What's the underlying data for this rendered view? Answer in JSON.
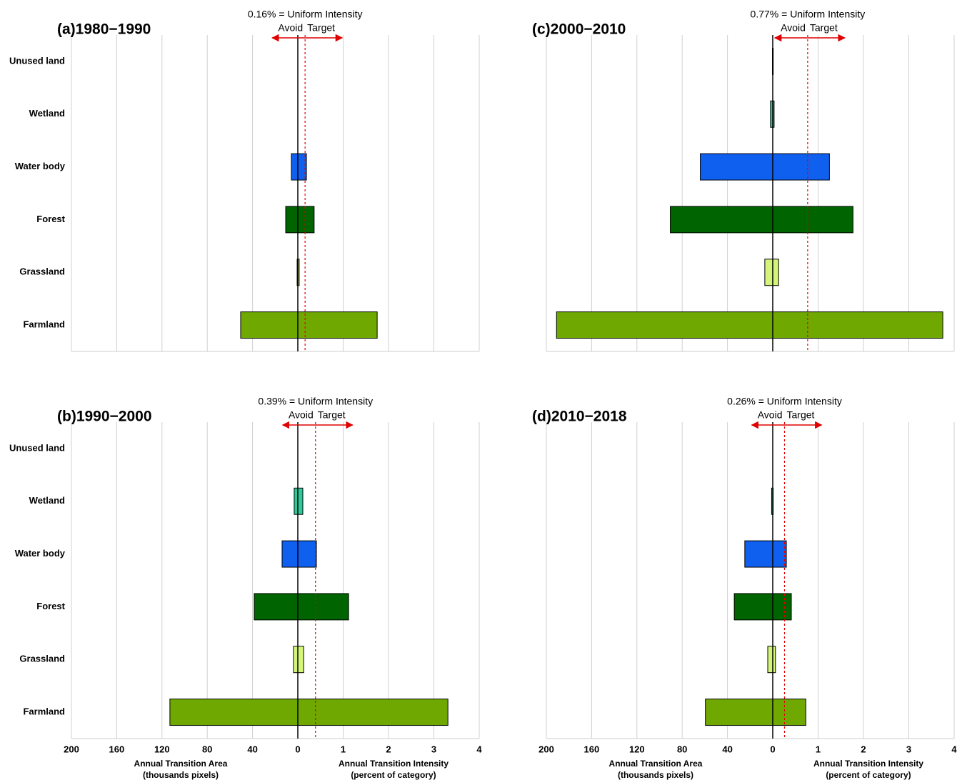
{
  "chart_data": [
    {
      "type": "butterfly",
      "title": "(a)1980−1990",
      "uniform_label": "0.16% = Uniform Intensity",
      "uniform": 0.16,
      "avoid": "Avoid",
      "target": "Target",
      "categories": [
        "Unused land",
        "Wetland",
        "Water body",
        "Forest",
        "Grassland",
        "Farmland"
      ],
      "category_labels": true,
      "colors": [
        "#a0a0a0",
        "#2ec99a",
        "#1060f0",
        "#006400",
        "#d4f57a",
        "#6fa800"
      ],
      "area": [
        0,
        0,
        5.7,
        10.7,
        0.6,
        50.5
      ],
      "intensity": [
        0,
        0,
        0.19,
        0.36,
        0.03,
        1.75
      ],
      "area_lim": [
        0,
        200
      ],
      "area_ticks": [
        200,
        160,
        120,
        80,
        40,
        0
      ],
      "intensity_lim": [
        0,
        4
      ],
      "intensity_ticks": [
        1,
        2,
        3,
        4
      ],
      "tick_labels": false
    },
    {
      "type": "butterfly",
      "title": "(b)1990−2000",
      "uniform_label": "0.39% = Uniform Intensity",
      "uniform": 0.39,
      "avoid": "Avoid",
      "target": "Target",
      "categories": [
        "Unused land",
        "Wetland",
        "Water body",
        "Forest",
        "Grassland",
        "Farmland"
      ],
      "category_labels": true,
      "colors": [
        "#a0a0a0",
        "#2ec99a",
        "#1060f0",
        "#006400",
        "#d4f57a",
        "#6fa800"
      ],
      "area": [
        0,
        3.2,
        13.9,
        38.5,
        3.8,
        113
      ],
      "intensity": [
        0,
        0.11,
        0.41,
        1.12,
        0.13,
        3.31
      ],
      "area_lim": [
        0,
        200
      ],
      "area_ticks": [
        200,
        160,
        120,
        80,
        40,
        0
      ],
      "intensity_lim": [
        0,
        4
      ],
      "intensity_ticks": [
        1,
        2,
        3,
        4
      ],
      "tick_labels": true,
      "area_label": [
        "Annual Transition Area",
        "(thousands pixels)"
      ],
      "intensity_label": [
        "Annual Transition Intensity",
        "(percent of category)"
      ]
    },
    {
      "type": "butterfly",
      "title": "(c)2000−2010",
      "uniform_label": "0.77% = Uniform Intensity",
      "uniform": 0.77,
      "avoid": "Avoid",
      "target": "Target",
      "categories": [
        "Unused land",
        "Wetland",
        "Water body",
        "Forest",
        "Grassland",
        "Farmland"
      ],
      "category_labels": false,
      "colors": [
        "#a0a0a0",
        "#2ec99a",
        "#1060f0",
        "#006400",
        "#d4f57a",
        "#6fa800"
      ],
      "area": [
        0.3,
        2,
        64,
        90.5,
        7,
        191
      ],
      "intensity": [
        0.01,
        0.03,
        1.25,
        1.77,
        0.13,
        3.75
      ],
      "area_lim": [
        0,
        200
      ],
      "area_ticks": [
        200,
        160,
        120,
        80,
        40,
        0
      ],
      "intensity_lim": [
        0,
        4
      ],
      "intensity_ticks": [
        1,
        2,
        3,
        4
      ],
      "tick_labels": false
    },
    {
      "type": "butterfly",
      "title": "(d)2010−2018",
      "uniform_label": "0.26% = Uniform Intensity",
      "uniform": 0.26,
      "avoid": "Avoid",
      "target": "Target",
      "categories": [
        "Unused land",
        "Wetland",
        "Water body",
        "Forest",
        "Grassland",
        "Farmland"
      ],
      "category_labels": false,
      "colors": [
        "#a0a0a0",
        "#2ec99a",
        "#1060f0",
        "#006400",
        "#d4f57a",
        "#6fa800"
      ],
      "area": [
        0,
        1,
        24.7,
        34,
        4.4,
        59.5
      ],
      "intensity": [
        0,
        0.01,
        0.3,
        0.41,
        0.06,
        0.73
      ],
      "area_lim": [
        0,
        200
      ],
      "area_ticks": [
        200,
        160,
        120,
        80,
        40,
        0
      ],
      "intensity_lim": [
        0,
        4
      ],
      "intensity_ticks": [
        1,
        2,
        3,
        4
      ],
      "tick_labels": true,
      "area_label": [
        "Annual Transition Area",
        "(thousands pixels)"
      ],
      "intensity_label": [
        "Annual Transition Intensity",
        "(percent of category)"
      ]
    }
  ]
}
